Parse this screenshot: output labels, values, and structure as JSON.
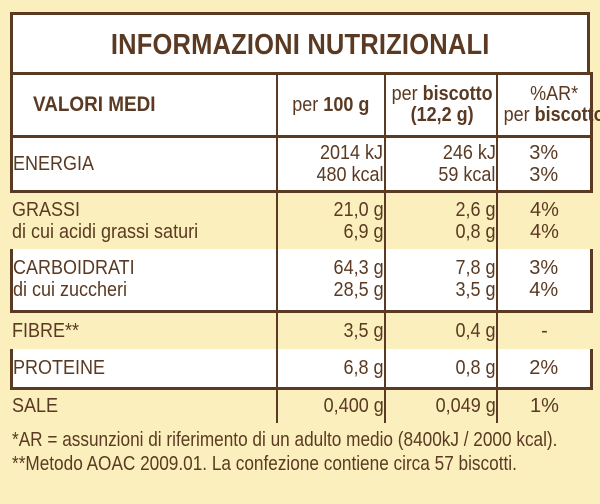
{
  "title": "INFORMAZIONI NUTRIZIONALI",
  "header": {
    "col0": "VALORI MEDI",
    "col1_a": "per ",
    "col1_b": "100 g",
    "col2_a": "per ",
    "col2_b": "biscotto",
    "col2_c": "(12,2 g)",
    "col3_a": "%AR*",
    "col3_b": "per ",
    "col3_c": "biscotto"
  },
  "rows": {
    "energia": {
      "label": "ENERGIA",
      "per100_1": "2014 kJ",
      "per100_2": "480 kcal",
      "biscotto_1": "246 kJ",
      "biscotto_2": "59 kcal",
      "ar_1": "3%",
      "ar_2": "3%"
    },
    "grassi": {
      "label": "GRASSI",
      "sub": "di cui acidi grassi saturi",
      "per100_1": "21,0 g",
      "per100_2": "6,9 g",
      "biscotto_1": "2,6 g",
      "biscotto_2": "0,8 g",
      "ar_1": "4%",
      "ar_2": "4%"
    },
    "carboidrati": {
      "label": "CARBOIDRATI",
      "sub": "di cui zuccheri",
      "per100_1": "64,3 g",
      "per100_2": "28,5 g",
      "biscotto_1": "7,8 g",
      "biscotto_2": "3,5 g",
      "ar_1": "3%",
      "ar_2": "4%"
    },
    "fibre": {
      "label": "FIBRE**",
      "per100": "3,5 g",
      "biscotto": "0,4 g",
      "ar": "-"
    },
    "proteine": {
      "label": "PROTEINE",
      "per100": "6,8 g",
      "biscotto": "0,8 g",
      "ar": "2%"
    },
    "sale": {
      "label": "SALE",
      "per100": "0,400 g",
      "biscotto": "0,049 g",
      "ar": "1%"
    }
  },
  "footnotes": {
    "line1": "*AR = assunzioni di riferimento di un adulto medio (8400kJ / 2000 kcal).",
    "line2": "**Metodo AOAC 2009.01. La confezione contiene circa 57 biscotti."
  }
}
